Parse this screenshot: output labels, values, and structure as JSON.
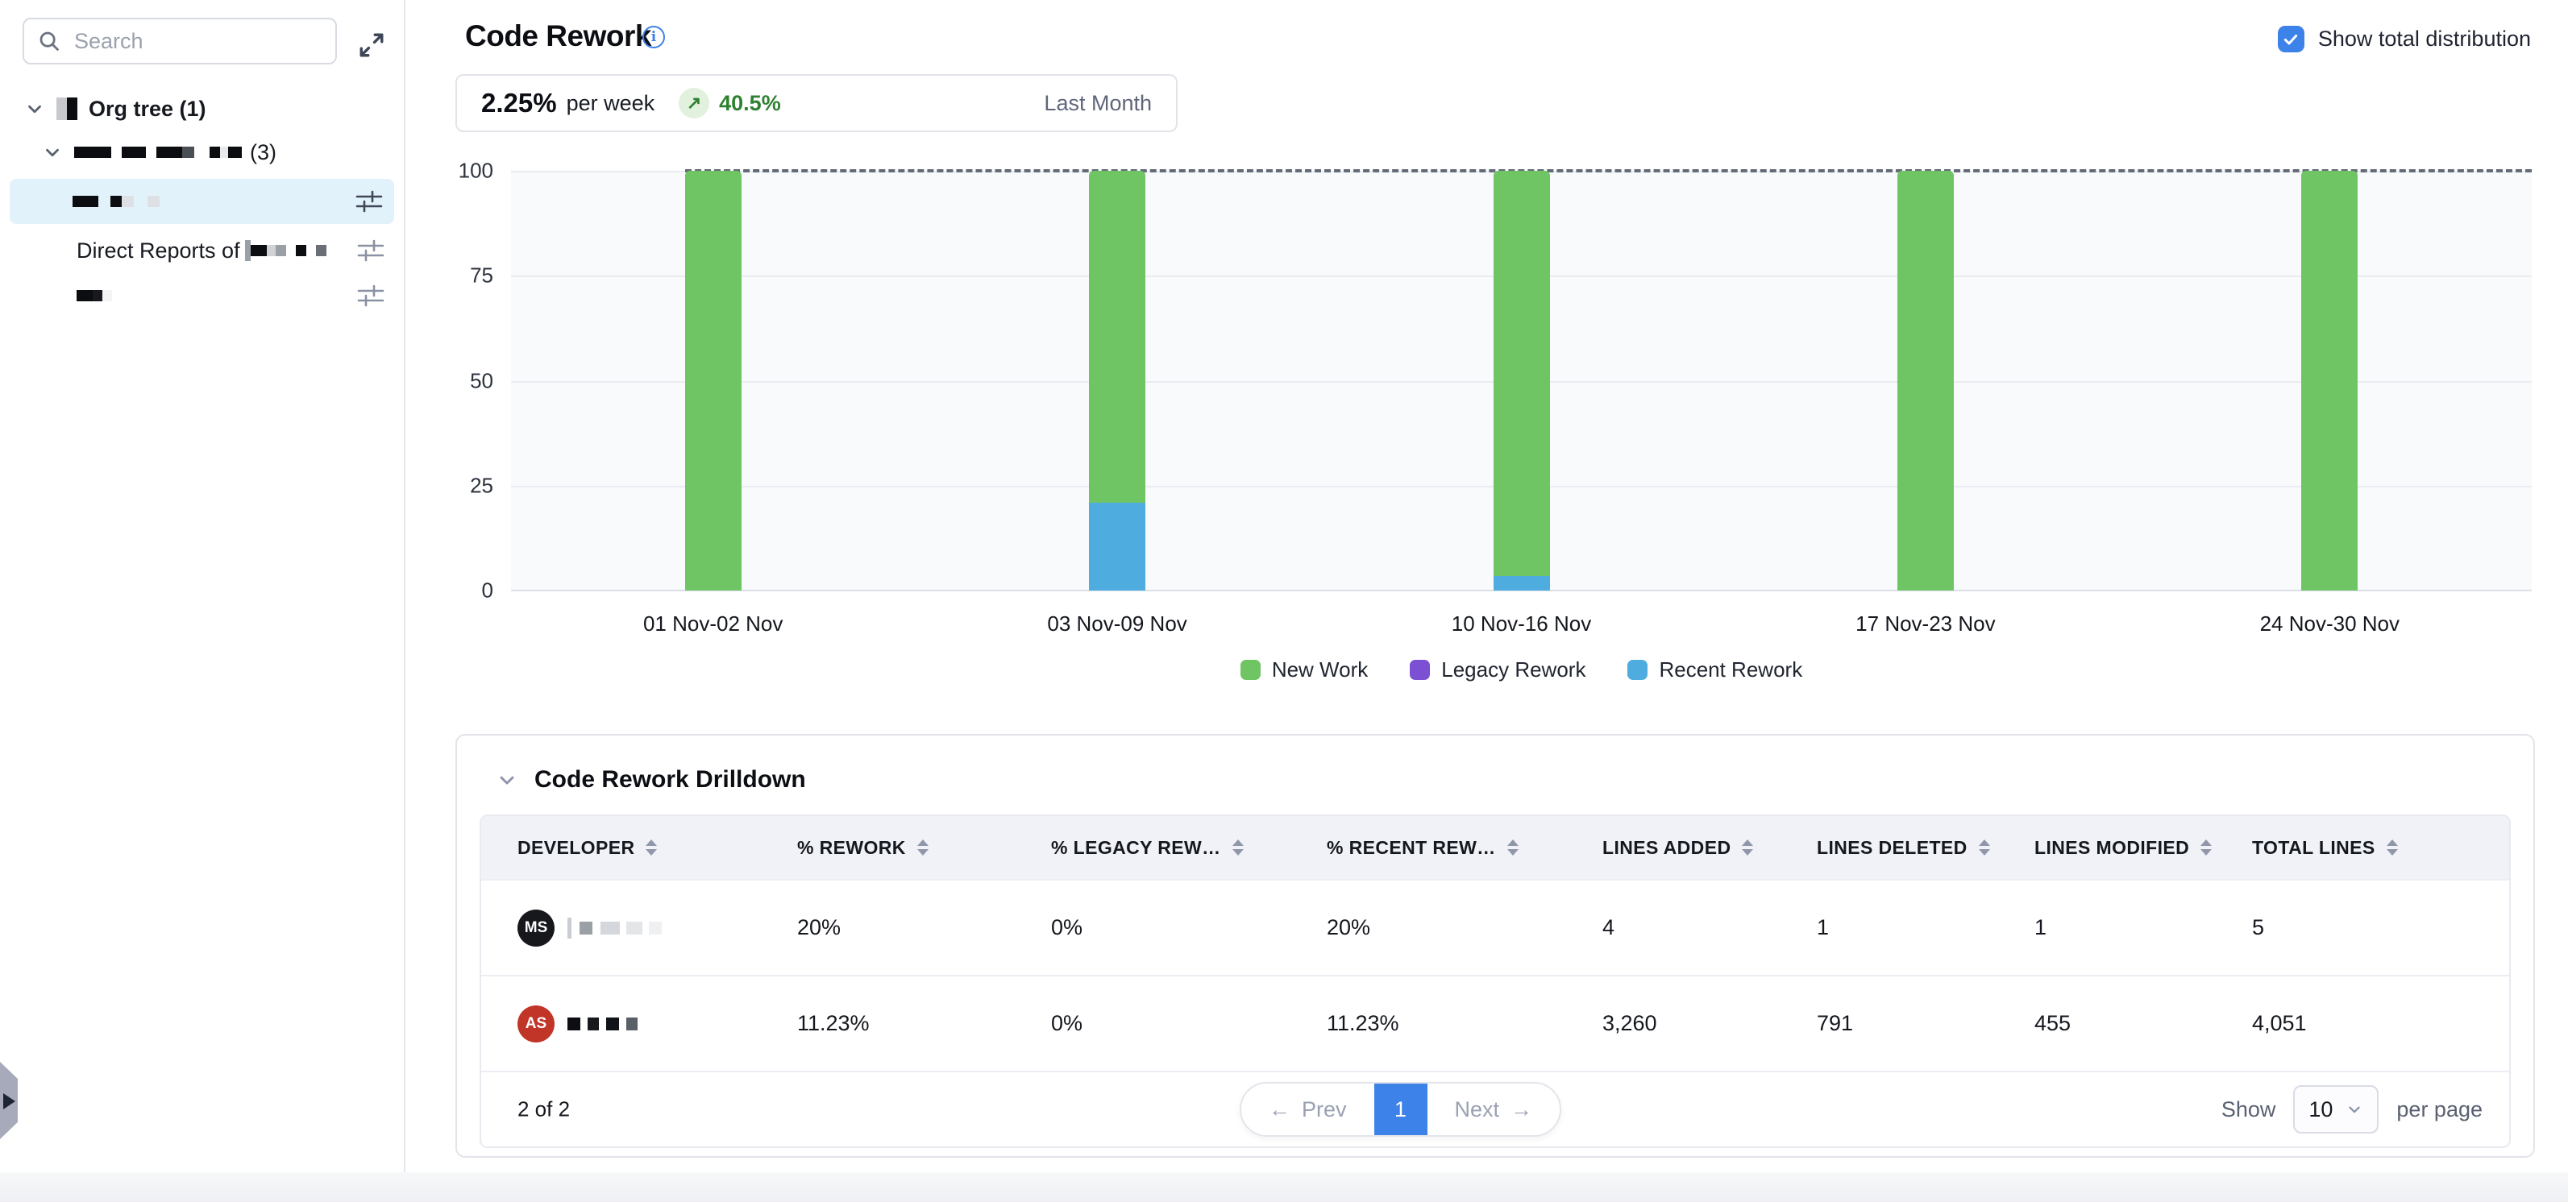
{
  "sidebar": {
    "search_placeholder": "Search",
    "tree": [
      {
        "level": 0,
        "chevron": true,
        "logo": true,
        "prefix": "Org tree (1)",
        "blocks": [],
        "suffix": "",
        "selected": false,
        "filter_icon": false
      },
      {
        "level": 1,
        "chevron": true,
        "logo": false,
        "prefix": "",
        "suffix": "(3)",
        "selected": false,
        "filter_icon": false,
        "blocks": [
          {
            "w": 46,
            "c": "#0b0d11",
            "g": 13
          },
          {
            "w": 30,
            "c": "#0b0d11",
            "g": 13
          },
          {
            "w": 32,
            "c": "#0b0d11",
            "g": 0
          },
          {
            "w": 15,
            "c": "#4a4e55",
            "g": 19
          },
          {
            "w": 13,
            "c": "#0b0d11",
            "g": 0
          },
          {
            "w": 10,
            "c": "#e8e9eb",
            "g": 0
          },
          {
            "w": 17,
            "c": "#0b0d11",
            "g": 10
          }
        ]
      },
      {
        "level": 2,
        "chevron": false,
        "logo": false,
        "prefix": "",
        "suffix": "",
        "selected": true,
        "filter_icon": true,
        "blocks": [
          {
            "w": 32,
            "c": "#0b0d11",
            "g": 15
          },
          {
            "w": 14,
            "c": "#0b0d11",
            "g": 0
          },
          {
            "w": 15,
            "c": "#dde1e6",
            "g": 17
          },
          {
            "w": 15,
            "c": "#dde1e6",
            "g": 0
          }
        ]
      },
      {
        "level": 2,
        "chevron": false,
        "logo": false,
        "prefix": "Direct Reports of ",
        "suffix": "",
        "selected": false,
        "filter_icon": true,
        "blocks": [
          {
            "w": 7,
            "c": "#9aa0a6",
            "h": 26,
            "g": 0
          },
          {
            "w": 20,
            "c": "#0b0d11",
            "g": 0
          },
          {
            "w": 11,
            "c": "#cfd2d6",
            "g": 0
          },
          {
            "w": 13,
            "c": "#9aa0a6",
            "g": 12
          },
          {
            "w": 13,
            "c": "#0b0d11",
            "g": 12
          },
          {
            "w": 13,
            "c": "#6a6e76",
            "g": 0
          }
        ]
      },
      {
        "level": 2,
        "chevron": false,
        "logo": false,
        "prefix": "",
        "suffix": "",
        "selected": false,
        "filter_icon": true,
        "blocks": [
          {
            "w": 20,
            "c": "#0b0d11",
            "g": 0
          },
          {
            "w": 12,
            "c": "#17191d",
            "g": 0
          },
          {
            "w": 12,
            "c": "#f4f4f5",
            "g": 0
          }
        ]
      }
    ]
  },
  "header": {
    "title": "Code Rework",
    "show_total_label": "Show total distribution",
    "show_total_checked": true
  },
  "stats": {
    "value": "2.25%",
    "unit": "per week",
    "trend_arrow": "↗",
    "trend_value": "40.5%",
    "period": "Last Month"
  },
  "chart_data": {
    "type": "bar",
    "stacked": true,
    "categories": [
      "01 Nov-02 Nov",
      "03 Nov-09 Nov",
      "10 Nov-16 Nov",
      "17 Nov-23 Nov",
      "24 Nov-30 Nov"
    ],
    "series": [
      {
        "name": "New Work",
        "color": "#6fc564",
        "values": [
          100,
          79,
          96.5,
          100,
          100
        ]
      },
      {
        "name": "Legacy Rework",
        "color": "#7b50d2",
        "values": [
          0,
          0,
          0,
          0,
          0
        ]
      },
      {
        "name": "Recent Rework",
        "color": "#4facdf",
        "values": [
          0,
          21,
          3.5,
          0,
          0
        ]
      }
    ],
    "ylim": [
      0,
      100
    ],
    "yticks": [
      0,
      25,
      50,
      75,
      100
    ],
    "total_distribution_line": 100,
    "grid": true,
    "legend_position": "bottom"
  },
  "drilldown": {
    "title": "Code Rework Drilldown",
    "columns": [
      "DEVELOPER",
      "% REWORK",
      "% LEGACY REW…",
      "% RECENT REW…",
      "LINES ADDED",
      "LINES DELETED",
      "LINES MODIFIED",
      "TOTAL LINES"
    ],
    "rows": [
      {
        "initials": "MS",
        "avatar_color": "#17181c",
        "name_blocks": [
          {
            "w": 5,
            "c": "#c9cdd3",
            "h": 26,
            "g": 10
          },
          {
            "w": 16,
            "c": "#9aa0a6",
            "g": 10
          },
          {
            "w": 24,
            "c": "#d4d7db",
            "g": 8
          },
          {
            "w": 20,
            "c": "#e3e5e8",
            "g": 8
          },
          {
            "w": 16,
            "c": "#eff0f2",
            "g": 0
          }
        ],
        "cells": [
          "20%",
          "0%",
          "20%",
          "4",
          "1",
          "1",
          "5"
        ]
      },
      {
        "initials": "AS",
        "avatar_color": "#c13528",
        "name_blocks": [
          {
            "w": 16,
            "c": "#0c0e12",
            "g": 9
          },
          {
            "w": 14,
            "c": "#17191d",
            "g": 9
          },
          {
            "w": 16,
            "c": "#101318",
            "g": 9
          },
          {
            "w": 14,
            "c": "#5a5e66",
            "g": 0
          }
        ],
        "cells": [
          "11.23%",
          "0%",
          "11.23%",
          "3,260",
          "791",
          "455",
          "4,051"
        ]
      }
    ],
    "pagination": {
      "summary": "2 of 2",
      "prev_label": "Prev",
      "prev_arrow": "←",
      "page": "1",
      "next_label": "Next",
      "next_arrow": "→",
      "show_label": "Show",
      "page_size": "10",
      "per_page_label": "per page"
    }
  },
  "colors": {
    "accent_blue": "#3d82e8",
    "trend_green": "#2f8132",
    "trend_bg": "#e1f1dd",
    "selected_row_bg": "#e2f2fb",
    "table_header_bg": "#f1f2f7",
    "chart_bg": "#f8fafc"
  }
}
